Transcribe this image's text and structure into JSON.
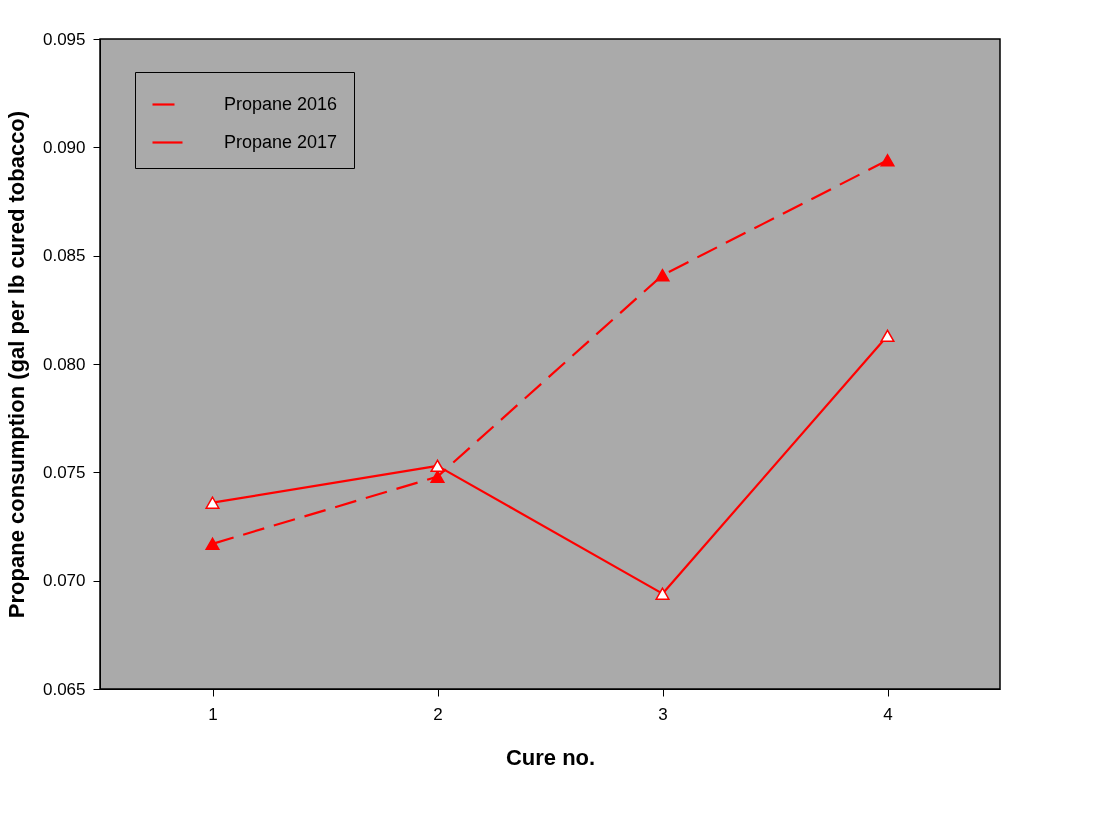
{
  "chart_data": {
    "type": "line",
    "xlabel": "Cure no.",
    "ylabel": "Propane consumption (gal per lb cured tobacco)",
    "x": [
      1,
      2,
      3,
      4
    ],
    "xlim": [
      0.5,
      4.5
    ],
    "xticks": [
      1,
      2,
      3,
      4
    ],
    "ylim": [
      0.065,
      0.095
    ],
    "yticks": [
      {
        "value": 0.065,
        "label": "0.065"
      },
      {
        "value": 0.07,
        "label": "0.070"
      },
      {
        "value": 0.075,
        "label": "0.075"
      },
      {
        "value": 0.08,
        "label": "0.080"
      },
      {
        "value": 0.085,
        "label": "0.085"
      },
      {
        "value": 0.09,
        "label": "0.090"
      },
      {
        "value": 0.095,
        "label": "0.095"
      }
    ],
    "marker": "triangle",
    "grid": false,
    "legend": "top left",
    "series": [
      {
        "name": "Propane 2016",
        "color": "#ff0000",
        "line_style": "dashed",
        "values": [
          0.0717,
          0.0748,
          0.0841,
          0.0894
        ]
      },
      {
        "name": "Propane 2017",
        "color": "#ff0000",
        "line_style": "solid",
        "values": [
          0.0736,
          0.0753,
          0.0694,
          0.0813
        ]
      }
    ]
  }
}
